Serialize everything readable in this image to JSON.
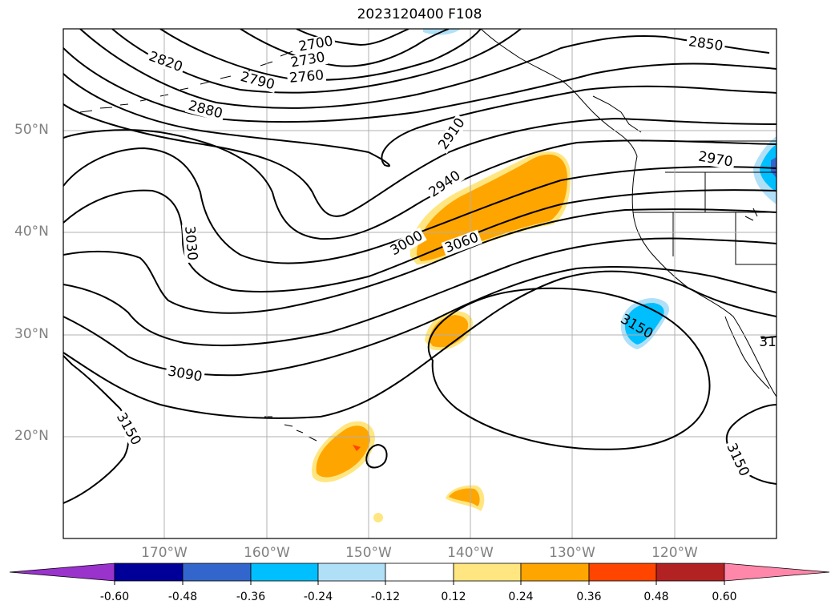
{
  "title": "2023120400 F108",
  "lat_labels": [
    "50°N",
    "40°N",
    "30°N",
    "20°N"
  ],
  "lon_labels": [
    "170°W",
    "160°W",
    "150°W",
    "140°W",
    "130°W",
    "120°W"
  ],
  "contour_labels": [
    "2700",
    "2730",
    "2760",
    "2790",
    "2820",
    "2850",
    "2880",
    "2910",
    "2940",
    "2970",
    "3000",
    "3030",
    "3060",
    "3090",
    "3150",
    "3150",
    "3150",
    "31"
  ],
  "colorbar": {
    "ticks": [
      "-0.60",
      "-0.48",
      "-0.36",
      "-0.24",
      "-0.12",
      "0.12",
      "0.24",
      "0.36",
      "0.48",
      "0.60"
    ],
    "colors": [
      "#9933cc",
      "#000099",
      "#3366cc",
      "#00bfff",
      "#b0e0f8",
      "#ffffff",
      "#ffe680",
      "#ffa500",
      "#ff4500",
      "#b22222",
      "#ff88aa"
    ]
  },
  "shading_colors": {
    "orange": "#ffa500",
    "yellow": "#ffe680",
    "cyan": "#00bfff",
    "lightblue": "#b0e0f8",
    "red": "#ff4500",
    "blue": "#3366cc"
  }
}
